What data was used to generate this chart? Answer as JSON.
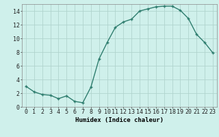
{
  "x": [
    0,
    1,
    2,
    3,
    4,
    5,
    6,
    7,
    8,
    9,
    10,
    11,
    12,
    13,
    14,
    15,
    16,
    17,
    18,
    19,
    20,
    21,
    22,
    23
  ],
  "y": [
    3.0,
    2.2,
    1.8,
    1.7,
    1.2,
    1.6,
    0.8,
    0.6,
    2.9,
    7.0,
    9.4,
    11.6,
    12.4,
    12.8,
    14.0,
    14.3,
    14.6,
    14.7,
    14.7,
    14.1,
    12.9,
    10.6,
    9.4,
    7.9
  ],
  "line_color": "#2e7d6e",
  "marker": "+",
  "marker_size": 3.5,
  "line_width": 1.0,
  "bg_color": "#cff0eb",
  "grid_color": "#b0d4ce",
  "xlabel": "Humidex (Indice chaleur)",
  "xlabel_fontsize": 6.5,
  "tick_fontsize": 6,
  "ylim": [
    0,
    15
  ],
  "yticks": [
    0,
    2,
    4,
    6,
    8,
    10,
    12,
    14
  ],
  "xticks": [
    0,
    1,
    2,
    3,
    4,
    5,
    6,
    7,
    8,
    9,
    10,
    11,
    12,
    13,
    14,
    15,
    16,
    17,
    18,
    19,
    20,
    21,
    22,
    23
  ],
  "xtick_labels": [
    "0",
    "1",
    "2",
    "3",
    "4",
    "5",
    "6",
    "7",
    "8",
    "9",
    "10",
    "11",
    "12",
    "13",
    "14",
    "15",
    "16",
    "17",
    "18",
    "19",
    "20",
    "21",
    "22",
    "23"
  ]
}
